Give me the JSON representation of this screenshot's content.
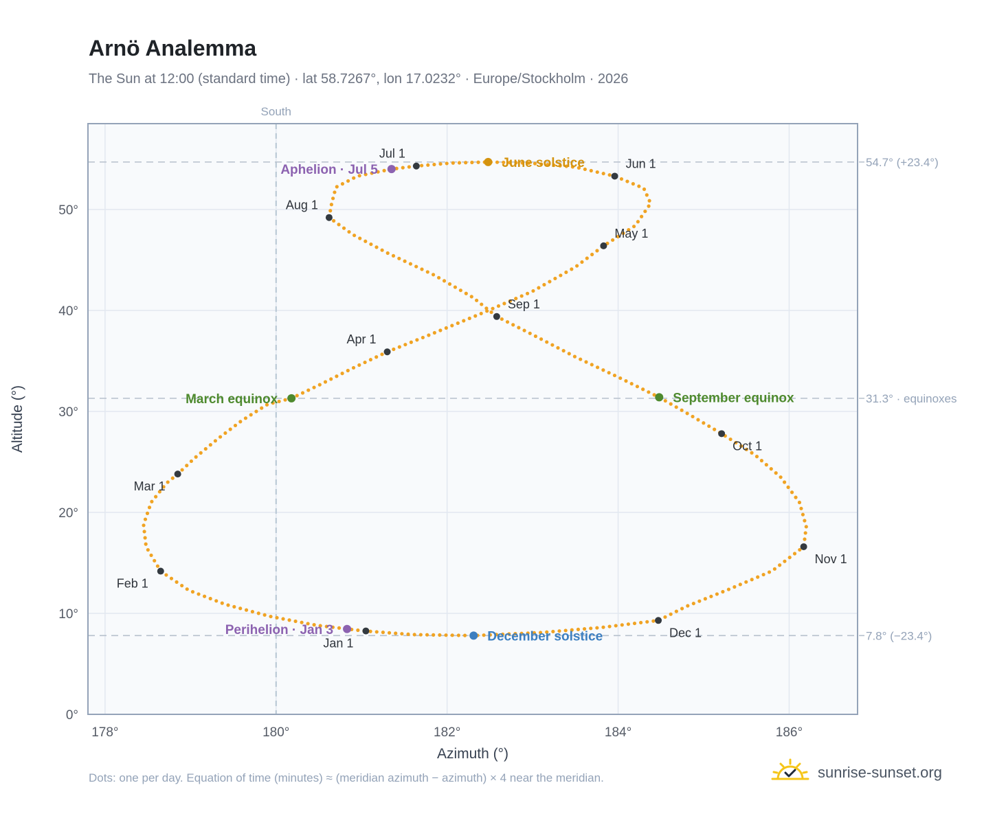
{
  "title": "Arnö Analemma",
  "subtitle": "The Sun at 12:00 (standard time) · lat 58.7267°, lon 17.0232° · Europe/Stockholm · 2026",
  "footer_note": "Dots: one per day. Equation of time (minutes) ≈ (meridian azimuth − azimuth) × 4 near the meridian.",
  "brand": {
    "name": "sunrise-sunset.org",
    "icon": "sun-check-icon"
  },
  "colors": {
    "curve": "#f0a323",
    "month_marker": "#343a40",
    "june_solstice": "#d4930f",
    "december_solstice": "#3d7fc0",
    "equinox": "#4e8a2e",
    "apsis": "#8c62b0",
    "frame": "#94a3b8",
    "plot_bg": "#f8fafc"
  },
  "chart_data": {
    "type": "scatter",
    "xlabel": "Azimuth (°)",
    "ylabel": "Altitude (°)",
    "xlim": [
      177.8,
      186.8
    ],
    "ylim": [
      0,
      58.5
    ],
    "x_ticks": [
      178,
      180,
      182,
      184,
      186
    ],
    "x_tick_labels": [
      "178°",
      "180°",
      "182°",
      "184°",
      "186°"
    ],
    "y_ticks": [
      0,
      10,
      20,
      30,
      40,
      50
    ],
    "y_tick_labels": [
      "0°",
      "10°",
      "20°",
      "30°",
      "40°",
      "50°"
    ],
    "grid": true,
    "south_line": {
      "azimuth": 180,
      "label": "South"
    },
    "reference_lines": [
      {
        "altitude": 54.7,
        "label": "54.7° (+23.4°)"
      },
      {
        "altitude": 31.3,
        "label": "31.3° · equinoxes"
      },
      {
        "altitude": 7.8,
        "label": "7.8° (−23.4°)"
      }
    ],
    "daily_path": [
      [
        181.03,
        8.26
      ],
      [
        180.48,
        8.81
      ],
      [
        179.93,
        9.7
      ],
      [
        179.41,
        10.88
      ],
      [
        178.98,
        12.28
      ],
      [
        178.65,
        14.18
      ],
      [
        178.48,
        16.6
      ],
      [
        178.45,
        18.8
      ],
      [
        178.54,
        21.0
      ],
      [
        178.72,
        22.9
      ],
      [
        178.85,
        23.8
      ],
      [
        179.05,
        25.4
      ],
      [
        179.32,
        27.3
      ],
      [
        179.6,
        29.1
      ],
      [
        179.9,
        30.7
      ],
      [
        180.18,
        31.3
      ],
      [
        180.5,
        32.6
      ],
      [
        180.9,
        34.3
      ],
      [
        181.3,
        35.9
      ],
      [
        181.8,
        37.6
      ],
      [
        182.4,
        39.7
      ],
      [
        183.0,
        41.9
      ],
      [
        183.5,
        44.3
      ],
      [
        183.83,
        46.4
      ],
      [
        184.2,
        48.4
      ],
      [
        184.38,
        50.6
      ],
      [
        184.3,
        52.1
      ],
      [
        183.96,
        53.3
      ],
      [
        183.5,
        54.2
      ],
      [
        182.95,
        54.6
      ],
      [
        182.48,
        54.7
      ],
      [
        182.05,
        54.6
      ],
      [
        181.64,
        54.3
      ],
      [
        181.35,
        54.0
      ],
      [
        180.95,
        53.3
      ],
      [
        180.7,
        52.2
      ],
      [
        180.65,
        50.6
      ],
      [
        180.62,
        49.2
      ],
      [
        180.9,
        47.5
      ],
      [
        181.3,
        45.7
      ],
      [
        181.85,
        43.5
      ],
      [
        182.3,
        41.3
      ],
      [
        182.58,
        39.4
      ],
      [
        183.0,
        37.6
      ],
      [
        183.5,
        35.4
      ],
      [
        184.0,
        33.4
      ],
      [
        184.48,
        31.4
      ],
      [
        184.85,
        29.6
      ],
      [
        185.21,
        27.8
      ],
      [
        185.6,
        25.7
      ],
      [
        185.9,
        23.5
      ],
      [
        186.12,
        21.0
      ],
      [
        186.2,
        18.6
      ],
      [
        186.17,
        16.6
      ],
      [
        185.8,
        14.2
      ],
      [
        185.3,
        12.4
      ],
      [
        184.8,
        10.7
      ],
      [
        184.47,
        9.3
      ],
      [
        183.8,
        8.6
      ],
      [
        183.1,
        8.1
      ],
      [
        182.31,
        7.8
      ],
      [
        181.6,
        7.9
      ],
      [
        181.03,
        8.26
      ]
    ],
    "month_markers": [
      {
        "label": "Jan 1",
        "az": 181.05,
        "alt": 8.26,
        "anchor": "below-left"
      },
      {
        "label": "Feb 1",
        "az": 178.65,
        "alt": 14.18,
        "anchor": "below-left"
      },
      {
        "label": "Mar 1",
        "az": 178.85,
        "alt": 23.8,
        "anchor": "below-left"
      },
      {
        "label": "Apr 1",
        "az": 181.3,
        "alt": 35.9,
        "anchor": "above-left"
      },
      {
        "label": "May 1",
        "az": 183.83,
        "alt": 46.4,
        "anchor": "above-right"
      },
      {
        "label": "Jun 1",
        "az": 183.96,
        "alt": 53.3,
        "anchor": "above-right"
      },
      {
        "label": "Jul 1",
        "az": 181.64,
        "alt": 54.3,
        "anchor": "above-left"
      },
      {
        "label": "Aug 1",
        "az": 180.62,
        "alt": 49.2,
        "anchor": "above-left"
      },
      {
        "label": "Sep 1",
        "az": 182.58,
        "alt": 39.4,
        "anchor": "above-right"
      },
      {
        "label": "Oct 1",
        "az": 185.21,
        "alt": 27.8,
        "anchor": "below-right"
      },
      {
        "label": "Nov 1",
        "az": 186.17,
        "alt": 16.6,
        "anchor": "below-right"
      },
      {
        "label": "Dec 1",
        "az": 184.47,
        "alt": 9.3,
        "anchor": "below-right"
      }
    ],
    "events": [
      {
        "label": "June solstice",
        "az": 182.48,
        "alt": 54.7,
        "color": "#d4930f",
        "side": "right"
      },
      {
        "label": "December solstice",
        "az": 182.31,
        "alt": 7.8,
        "color": "#3d7fc0",
        "side": "right"
      },
      {
        "label": "March equinox",
        "az": 180.18,
        "alt": 31.3,
        "color": "#4e8a2e",
        "side": "left"
      },
      {
        "label": "September equinox",
        "az": 184.48,
        "alt": 31.4,
        "color": "#4e8a2e",
        "side": "right"
      },
      {
        "label": "Aphelion · Jul 5",
        "az": 181.35,
        "alt": 54.0,
        "color": "#8c62b0",
        "side": "left"
      },
      {
        "label": "Perihelion · Jan 3",
        "az": 180.83,
        "alt": 8.45,
        "color": "#8c62b0",
        "side": "left"
      }
    ]
  }
}
